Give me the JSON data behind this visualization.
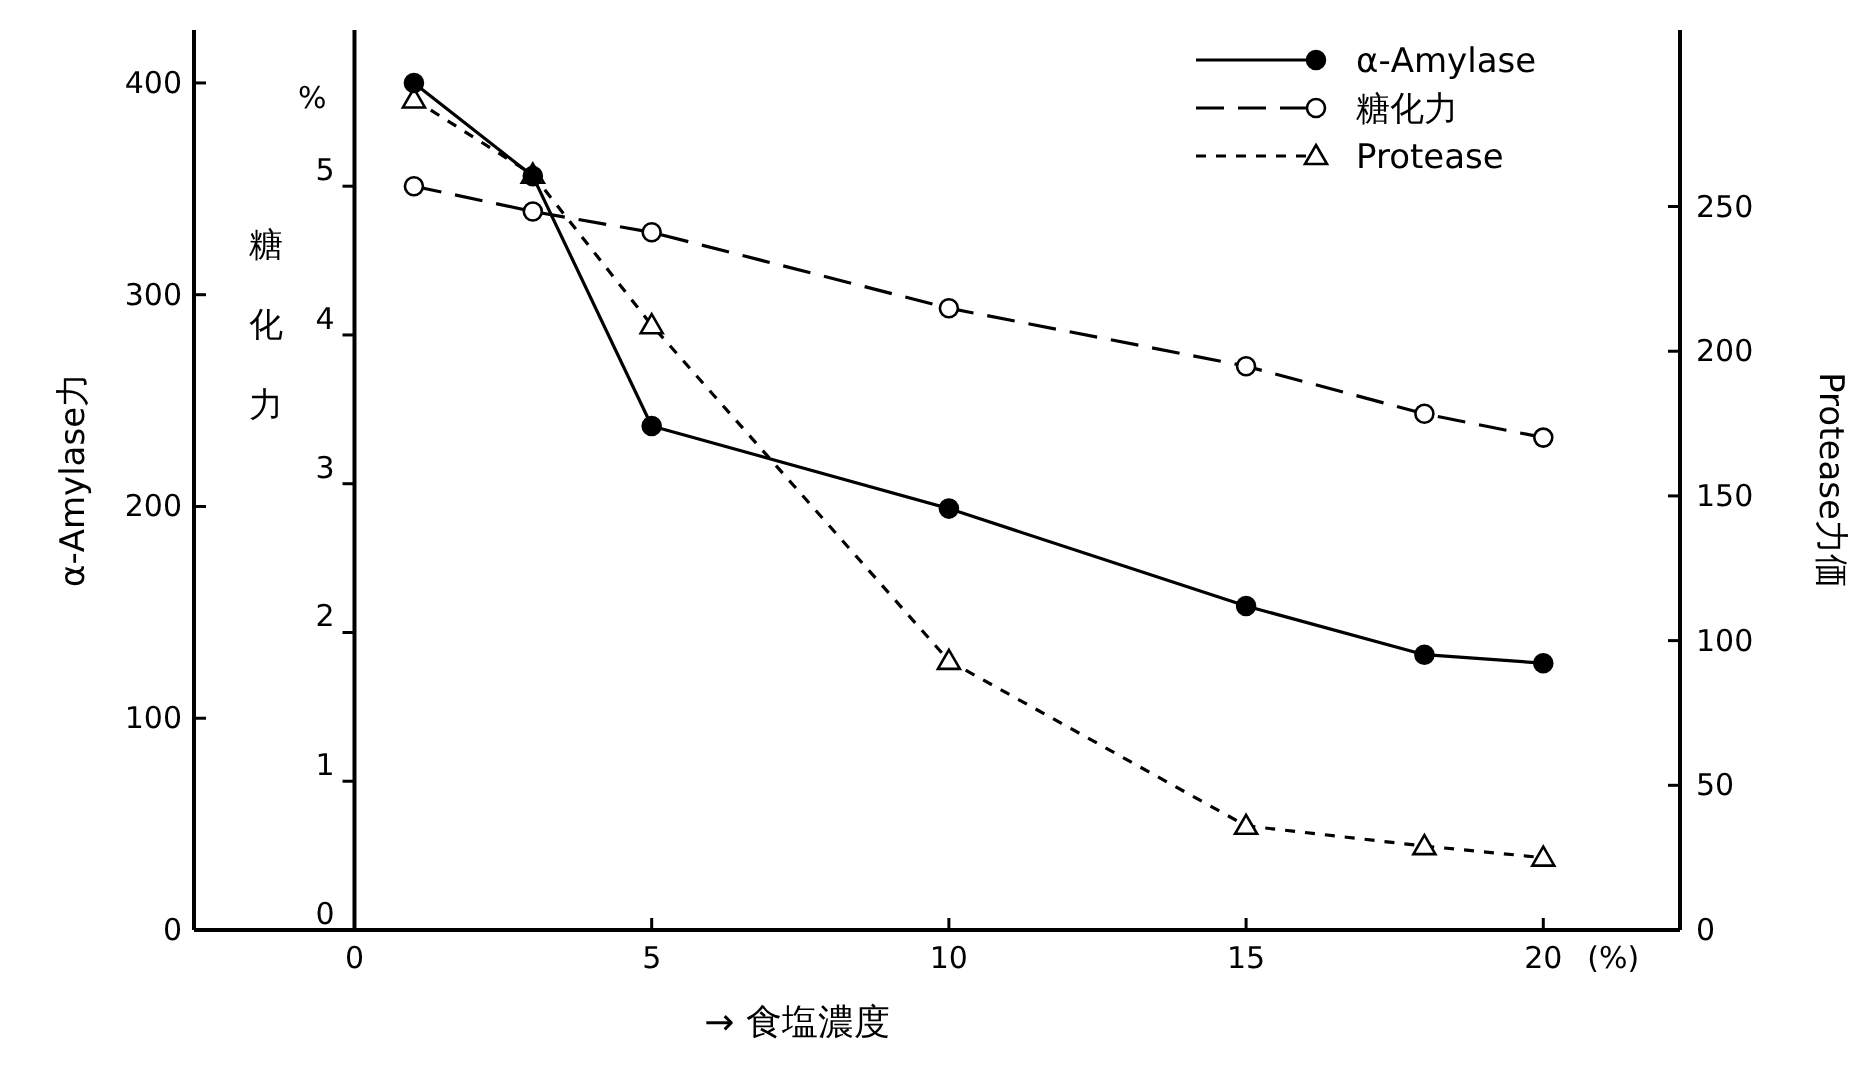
{
  "chart_data": {
    "type": "line",
    "xlabel": "→ 食塩濃度",
    "ylabel": "α-Amylase力",
    "y2label": "Protease力価",
    "y3label": "糖化力",
    "annotations": [
      "%",
      "(%)"
    ],
    "xlim": [
      -2.7,
      22.3
    ],
    "xticks": [
      0,
      5,
      10,
      15,
      20
    ],
    "ylim": [
      0,
      425
    ],
    "yticks": [
      0,
      100,
      200,
      300,
      400
    ],
    "y2lim": [
      0,
      311
    ],
    "y2ticks": [
      0,
      50,
      100,
      150,
      200,
      250
    ],
    "y3lim": [
      0,
      6.05
    ],
    "y3ticks": [
      0,
      1,
      2,
      3,
      4,
      5
    ],
    "x": [
      1,
      3,
      5,
      10,
      15,
      18,
      20
    ],
    "grid": false,
    "legend": "top right",
    "series": [
      {
        "name": "α-Amylase",
        "color": "#000000",
        "values": [
          400,
          356,
          238,
          199,
          153,
          130,
          126
        ],
        "marker": "circle",
        "line_style": "solid"
      },
      {
        "name": "糖化力",
        "color": "#000000",
        "axis": "y3",
        "values": [
          5.0,
          4.83,
          4.69,
          4.18,
          3.79,
          3.47,
          3.31
        ],
        "marker": "circle",
        "line_style": "dashed"
      },
      {
        "name": "Protease",
        "color": "#000000",
        "axis": "y2",
        "values": [
          287,
          261,
          209,
          93,
          36,
          29,
          25
        ],
        "marker": "triangle",
        "line_style": "dotted"
      }
    ]
  }
}
